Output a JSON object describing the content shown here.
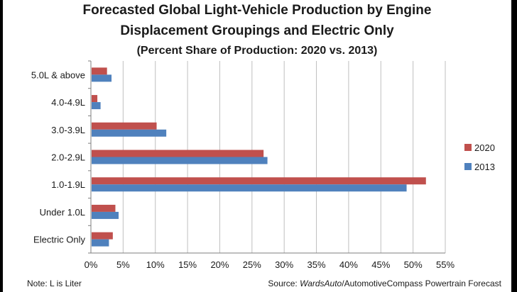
{
  "chart_data": {
    "type": "bar",
    "orientation": "horizontal",
    "title": "Forecasted Global Light-Vehicle Production by Engine",
    "title_line2": "Displacement Groupings and Electric Only",
    "subtitle": "(Percent Share of Production: 2020 vs. 2013)",
    "categories": [
      "5.0L & above",
      "4.0-4.9L",
      "3.0-3.9L",
      "2.0-2.9L",
      "1.0-1.9L",
      "Under 1.0L",
      "Electric Only"
    ],
    "series": [
      {
        "name": "2020",
        "color": "#c0504d",
        "values": [
          2.5,
          1.0,
          10.2,
          26.8,
          52.0,
          3.8,
          3.4
        ]
      },
      {
        "name": "2013",
        "color": "#4f81bd",
        "values": [
          3.2,
          1.5,
          11.7,
          27.4,
          49.0,
          4.3,
          2.8
        ]
      }
    ],
    "xlim": [
      0,
      55
    ],
    "xticks": [
      0,
      5,
      10,
      15,
      20,
      25,
      30,
      35,
      40,
      45,
      50,
      55
    ],
    "tick_suffix": "%",
    "grid": true,
    "legend_position": "right",
    "xlabel": "",
    "ylabel": ""
  },
  "footer": {
    "note": "Note: L is Liter",
    "source_prefix": "Source: ",
    "source_italic": "WardsAuto",
    "source_rest": "/AutomotiveCompass Powertrain Forecast"
  }
}
